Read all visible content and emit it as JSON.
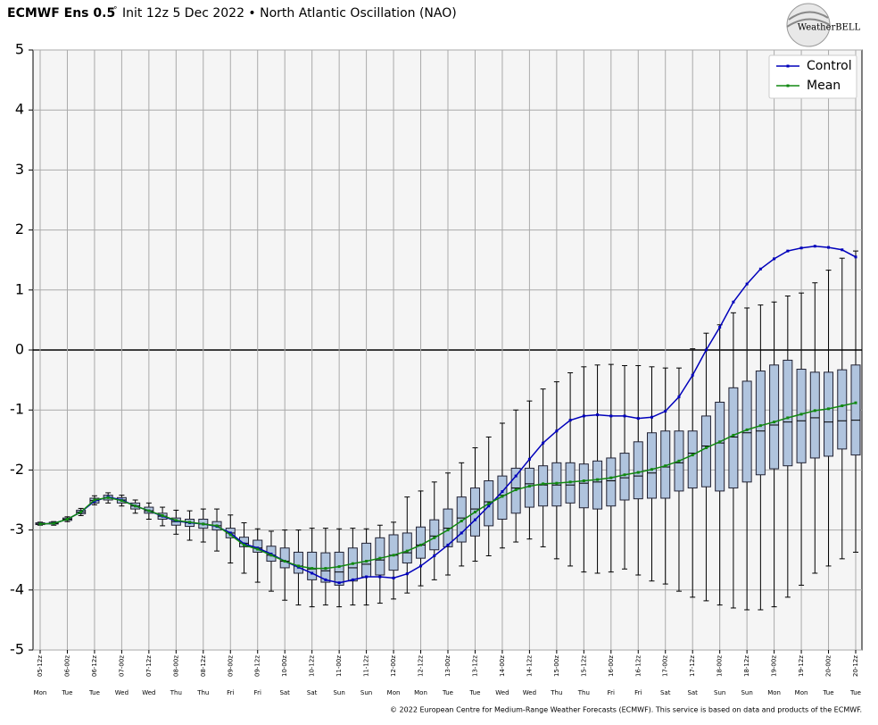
{
  "chart_data": {
    "type": "box",
    "title": "ECMWF Ens 0.5",
    "title_degree": "°",
    "subtitle": "Init 12z 5 Dec 2022 • North Atlantic Oscillation (NAO)",
    "logo": "WeatherBELL",
    "credit": "© 2022 European Centre for Medium-Range Weather Forecasts (ECMWF). This service is based on data and products of the ECMWF.",
    "categories": [
      "05-12z",
      null,
      "06-00z",
      null,
      "06-12z",
      null,
      "07-00z",
      null,
      "07-12z",
      null,
      "08-00z",
      null,
      "08-12z",
      null,
      "09-00z",
      null,
      "09-12z",
      null,
      "10-00z",
      null,
      "10-12z",
      null,
      "11-00z",
      null,
      "11-12z",
      null,
      "12-00z",
      null,
      "12-12z",
      null,
      "13-00z",
      null,
      "13-12z",
      null,
      "14-00z",
      null,
      "14-12z",
      null,
      "15-00z",
      null,
      "15-12z",
      null,
      "16-00z",
      null,
      "16-12z",
      null,
      "17-00z",
      null,
      "17-12z",
      null,
      "18-00z",
      null,
      "18-12z",
      null,
      "19-00z",
      null,
      "19-12z",
      null,
      "20-00z",
      null,
      "20-12z"
    ],
    "days": [
      "Mon",
      null,
      "Tue",
      null,
      "Tue",
      null,
      "Wed",
      null,
      "Wed",
      null,
      "Thu",
      null,
      "Thu",
      null,
      "Fri",
      null,
      "Fri",
      null,
      "Sat",
      null,
      "Sat",
      null,
      "Sun",
      null,
      "Sun",
      null,
      "Mon",
      null,
      "Mon",
      null,
      "Tue",
      null,
      "Tue",
      null,
      "Wed",
      null,
      "Wed",
      null,
      "Thu",
      null,
      "Thu",
      null,
      "Fri",
      null,
      "Fri",
      null,
      "Sat",
      null,
      "Sat",
      null,
      "Sun",
      null,
      "Sun",
      null,
      "Mon",
      null,
      "Mon",
      null,
      "Tue",
      null,
      "Tue"
    ],
    "ylim": [
      -5,
      5
    ],
    "yticks": [
      -5,
      -4,
      -3,
      -2,
      -1,
      0,
      1,
      2,
      3,
      4,
      5
    ],
    "grid": true,
    "box_color": "#b0c4de",
    "boxes": {
      "min": [
        -2.92,
        -2.92,
        -2.86,
        -2.76,
        -2.58,
        -2.55,
        -2.6,
        -2.72,
        -2.82,
        -2.93,
        -3.07,
        -3.17,
        -3.2,
        -3.35,
        -3.55,
        -3.72,
        -3.87,
        -4.02,
        -4.17,
        -4.25,
        -4.28,
        -4.25,
        -4.28,
        -4.25,
        -4.25,
        -4.22,
        -4.15,
        -4.05,
        -3.93,
        -3.83,
        -3.75,
        -3.6,
        -3.52,
        -3.43,
        -3.3,
        -3.2,
        -3.15,
        -3.28,
        -3.48,
        -3.6,
        -3.7,
        -3.72,
        -3.7,
        -3.65,
        -3.75,
        -3.85,
        -3.9,
        -4.02,
        -4.12,
        -4.18,
        -4.25,
        -4.3,
        -4.33,
        -4.33,
        -4.28,
        -4.12,
        -3.92,
        -3.72,
        -3.6,
        -3.48,
        -3.37
      ],
      "q1": [
        -2.91,
        -2.9,
        -2.84,
        -2.73,
        -2.55,
        -2.5,
        -2.55,
        -2.65,
        -2.72,
        -2.82,
        -2.92,
        -2.94,
        -2.97,
        -3.0,
        -3.13,
        -3.28,
        -3.37,
        -3.52,
        -3.63,
        -3.72,
        -3.83,
        -3.87,
        -3.92,
        -3.85,
        -3.78,
        -3.75,
        -3.67,
        -3.55,
        -3.47,
        -3.33,
        -3.28,
        -3.2,
        -3.1,
        -2.93,
        -2.82,
        -2.72,
        -2.62,
        -2.6,
        -2.6,
        -2.55,
        -2.63,
        -2.65,
        -2.6,
        -2.5,
        -2.48,
        -2.47,
        -2.47,
        -2.35,
        -2.3,
        -2.28,
        -2.35,
        -2.3,
        -2.2,
        -2.08,
        -1.98,
        -1.93,
        -1.88,
        -1.8,
        -1.77,
        -1.65,
        -1.75
      ],
      "median": [
        -2.9,
        -2.89,
        -2.82,
        -2.7,
        -2.51,
        -2.46,
        -2.5,
        -2.6,
        -2.68,
        -2.77,
        -2.86,
        -2.88,
        -2.9,
        -2.93,
        -3.05,
        -3.22,
        -3.3,
        -3.42,
        -3.52,
        -3.6,
        -3.65,
        -3.68,
        -3.7,
        -3.63,
        -3.57,
        -3.5,
        -3.42,
        -3.38,
        -3.25,
        -3.1,
        -2.97,
        -2.8,
        -2.65,
        -2.53,
        -2.42,
        -2.3,
        -2.23,
        -2.25,
        -2.25,
        -2.25,
        -2.22,
        -2.2,
        -2.18,
        -2.13,
        -2.1,
        -2.05,
        -1.95,
        -1.88,
        -1.72,
        -1.6,
        -1.55,
        -1.45,
        -1.38,
        -1.35,
        -1.25,
        -1.2,
        -1.18,
        -1.13,
        -1.2,
        -1.18,
        -1.17
      ],
      "q3": [
        -2.88,
        -2.87,
        -2.8,
        -2.67,
        -2.47,
        -2.42,
        -2.46,
        -2.55,
        -2.62,
        -2.72,
        -2.8,
        -2.82,
        -2.82,
        -2.86,
        -2.97,
        -3.12,
        -3.17,
        -3.27,
        -3.3,
        -3.37,
        -3.37,
        -3.38,
        -3.37,
        -3.3,
        -3.22,
        -3.13,
        -3.08,
        -3.05,
        -2.95,
        -2.83,
        -2.65,
        -2.45,
        -2.3,
        -2.18,
        -2.1,
        -1.97,
        -1.97,
        -1.93,
        -1.88,
        -1.88,
        -1.9,
        -1.85,
        -1.8,
        -1.72,
        -1.53,
        -1.38,
        -1.35,
        -1.35,
        -1.35,
        -1.1,
        -0.87,
        -0.63,
        -0.52,
        -0.35,
        -0.25,
        -0.17,
        -0.32,
        -0.37,
        -0.37,
        -0.33,
        -0.25
      ],
      "max": [
        -2.87,
        -2.86,
        -2.78,
        -2.64,
        -2.43,
        -2.38,
        -2.42,
        -2.5,
        -2.55,
        -2.62,
        -2.67,
        -2.68,
        -2.65,
        -2.65,
        -2.75,
        -2.88,
        -2.98,
        -3.02,
        -3.0,
        -3.0,
        -2.97,
        -2.97,
        -2.98,
        -2.97,
        -2.98,
        -2.92,
        -2.87,
        -2.45,
        -2.35,
        -2.2,
        -2.05,
        -1.88,
        -1.63,
        -1.45,
        -1.22,
        -1.0,
        -0.85,
        -0.65,
        -0.53,
        -0.38,
        -0.28,
        -0.25,
        -0.24,
        -0.26,
        -0.26,
        -0.28,
        -0.3,
        -0.3,
        0.02,
        0.28,
        0.42,
        0.62,
        0.7,
        0.75,
        0.8,
        0.9,
        0.95,
        1.12,
        1.33,
        1.53,
        1.65
      ]
    },
    "series": [
      {
        "name": "Control",
        "color": "#0000bb",
        "values": [
          -2.9,
          -2.89,
          -2.82,
          -2.7,
          -2.52,
          -2.45,
          -2.5,
          -2.6,
          -2.68,
          -2.77,
          -2.85,
          -2.88,
          -2.9,
          -2.94,
          -3.05,
          -3.23,
          -3.3,
          -3.4,
          -3.52,
          -3.62,
          -3.72,
          -3.83,
          -3.88,
          -3.83,
          -3.78,
          -3.78,
          -3.8,
          -3.73,
          -3.6,
          -3.43,
          -3.25,
          -3.05,
          -2.83,
          -2.6,
          -2.36,
          -2.1,
          -1.82,
          -1.55,
          -1.35,
          -1.17,
          -1.1,
          -1.08,
          -1.1,
          -1.1,
          -1.14,
          -1.12,
          -1.02,
          -0.78,
          -0.42,
          0,
          0.38,
          0.8,
          1.1,
          1.35,
          1.52,
          1.65,
          1.7,
          1.73,
          1.71,
          1.67,
          1.55
        ]
      },
      {
        "name": "Mean",
        "color": "#118811",
        "values": [
          -2.9,
          -2.89,
          -2.82,
          -2.7,
          -2.5,
          -2.46,
          -2.51,
          -2.6,
          -2.68,
          -2.76,
          -2.84,
          -2.87,
          -2.9,
          -2.93,
          -3.08,
          -3.25,
          -3.32,
          -3.42,
          -3.52,
          -3.6,
          -3.64,
          -3.64,
          -3.61,
          -3.56,
          -3.52,
          -3.47,
          -3.42,
          -3.35,
          -3.25,
          -3.13,
          -3.0,
          -2.85,
          -2.7,
          -2.56,
          -2.44,
          -2.33,
          -2.27,
          -2.23,
          -2.22,
          -2.2,
          -2.18,
          -2.16,
          -2.13,
          -2.08,
          -2.04,
          -1.99,
          -1.93,
          -1.85,
          -1.75,
          -1.63,
          -1.53,
          -1.42,
          -1.33,
          -1.26,
          -1.2,
          -1.13,
          -1.07,
          -1.01,
          -0.98,
          -0.93,
          -0.88
        ]
      }
    ],
    "legend": "upper right"
  }
}
